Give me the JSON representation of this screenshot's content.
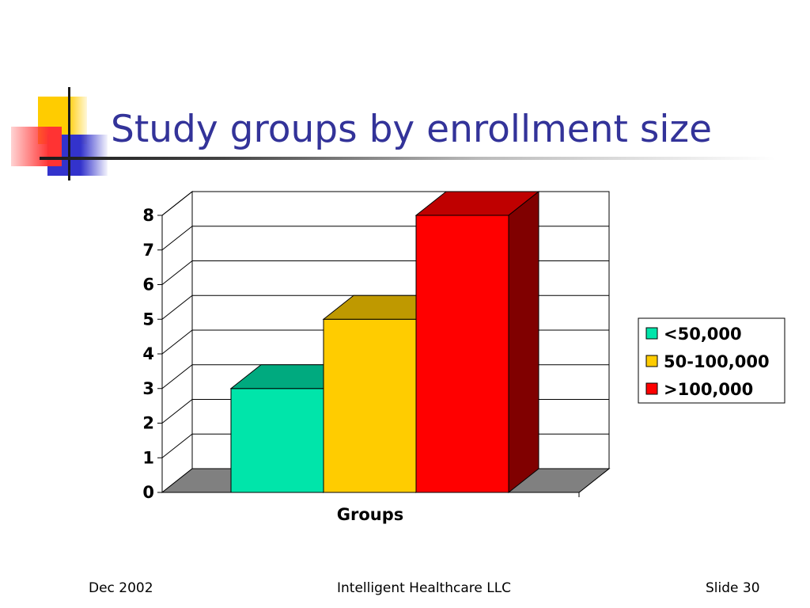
{
  "slide": {
    "title": "Study groups by enrollment size",
    "footer_left": "Dec 2002",
    "footer_center": "Intelligent Healthcare LLC",
    "footer_right": "Slide 30"
  },
  "colors": {
    "title": "#333399",
    "deco_yellow": "#FFCC00",
    "deco_blue": "#3333CC",
    "deco_red": "#FF3333",
    "floor": "#808080"
  },
  "chart_data": {
    "type": "bar",
    "title": "",
    "xlabel": "Groups",
    "ylabel": "",
    "ylim": [
      0,
      8
    ],
    "yticks": [
      "0",
      "1",
      "2",
      "3",
      "4",
      "5",
      "6",
      "7",
      "8"
    ],
    "categories": [
      "Groups"
    ],
    "series": [
      {
        "name": "<50,000",
        "values": [
          3
        ],
        "color": "#00E5AA",
        "top_color": "#00AA7F",
        "side_color": "#007755"
      },
      {
        "name": "50-100,000",
        "values": [
          5
        ],
        "color": "#FFCC00",
        "top_color": "#BF9900",
        "side_color": "#8C7000"
      },
      {
        "name": ">100,000",
        "values": [
          8
        ],
        "color": "#FF0000",
        "top_color": "#BF0000",
        "side_color": "#800000"
      }
    ],
    "gridlines": true,
    "legend": "right",
    "style": "3d-clustered-column"
  }
}
